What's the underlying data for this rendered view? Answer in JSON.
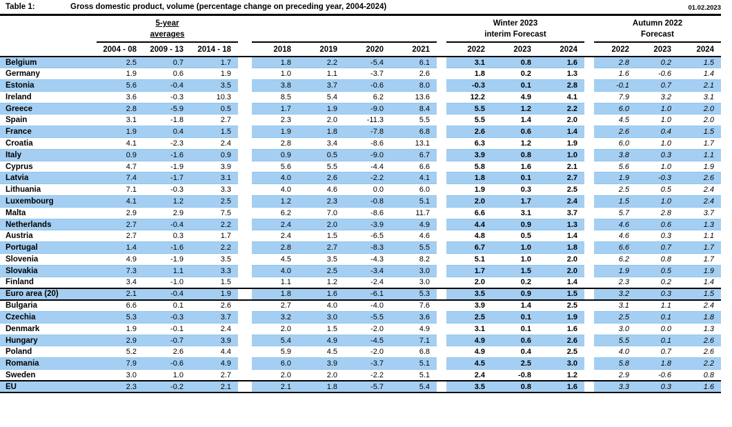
{
  "meta": {
    "table_label": "Table 1:",
    "title": "Gross domestic product, volume (percentage change on preceding year, 2004-2024)",
    "date": "01.02.2023"
  },
  "colors": {
    "row_highlight_blue": "#a5cff2",
    "row_gridline_blue": "#8cc5ef",
    "rule_black": "#000000",
    "background": "#ffffff"
  },
  "header": {
    "groups": {
      "avg_line1": "5-year",
      "avg_line2": "averages",
      "winter_line1": "Winter 2023",
      "winter_line2": "interim Forecast",
      "autumn_line1": "Autumn 2022",
      "autumn_line2": "Forecast"
    },
    "columns": {
      "avg": [
        "2004 - 08",
        "2009 - 13",
        "2014 - 18"
      ],
      "years": [
        "2018",
        "2019",
        "2020",
        "2021"
      ],
      "winter": [
        "2022",
        "2023",
        "2024"
      ],
      "autumn": [
        "2022",
        "2023",
        "2024"
      ]
    }
  },
  "rows": [
    {
      "country": "Belgium",
      "blue": true,
      "emphasis": false,
      "avg": [
        "2.5",
        "0.7",
        "1.7"
      ],
      "years": [
        "1.8",
        "2.2",
        "-5.4",
        "6.1"
      ],
      "winter": [
        "3.1",
        "0.8",
        "1.6"
      ],
      "autumn": [
        "2.8",
        "0.2",
        "1.5"
      ]
    },
    {
      "country": "Germany",
      "blue": false,
      "emphasis": false,
      "avg": [
        "1.9",
        "0.6",
        "1.9"
      ],
      "years": [
        "1.0",
        "1.1",
        "-3.7",
        "2.6"
      ],
      "winter": [
        "1.8",
        "0.2",
        "1.3"
      ],
      "autumn": [
        "1.6",
        "-0.6",
        "1.4"
      ]
    },
    {
      "country": "Estonia",
      "blue": true,
      "emphasis": false,
      "avg": [
        "5.6",
        "-0.4",
        "3.5"
      ],
      "years": [
        "3.8",
        "3.7",
        "-0.6",
        "8.0"
      ],
      "winter": [
        "-0.3",
        "0.1",
        "2.8"
      ],
      "autumn": [
        "-0.1",
        "0.7",
        "2.1"
      ]
    },
    {
      "country": "Ireland",
      "blue": false,
      "emphasis": false,
      "avg": [
        "3.6",
        "-0.3",
        "10.3"
      ],
      "years": [
        "8.5",
        "5.4",
        "6.2",
        "13.6"
      ],
      "winter": [
        "12.2",
        "4.9",
        "4.1"
      ],
      "autumn": [
        "7.9",
        "3.2",
        "3.1"
      ]
    },
    {
      "country": "Greece",
      "blue": true,
      "emphasis": false,
      "avg": [
        "2.8",
        "-5.9",
        "0.5"
      ],
      "years": [
        "1.7",
        "1.9",
        "-9.0",
        "8.4"
      ],
      "winter": [
        "5.5",
        "1.2",
        "2.2"
      ],
      "autumn": [
        "6.0",
        "1.0",
        "2.0"
      ]
    },
    {
      "country": "Spain",
      "blue": false,
      "emphasis": false,
      "avg": [
        "3.1",
        "-1.8",
        "2.7"
      ],
      "years": [
        "2.3",
        "2.0",
        "-11.3",
        "5.5"
      ],
      "winter": [
        "5.5",
        "1.4",
        "2.0"
      ],
      "autumn": [
        "4.5",
        "1.0",
        "2.0"
      ]
    },
    {
      "country": "France",
      "blue": true,
      "emphasis": false,
      "avg": [
        "1.9",
        "0.4",
        "1.5"
      ],
      "years": [
        "1.9",
        "1.8",
        "-7.8",
        "6.8"
      ],
      "winter": [
        "2.6",
        "0.6",
        "1.4"
      ],
      "autumn": [
        "2.6",
        "0.4",
        "1.5"
      ]
    },
    {
      "country": "Croatia",
      "blue": false,
      "emphasis": false,
      "avg": [
        "4.1",
        "-2.3",
        "2.4"
      ],
      "years": [
        "2.8",
        "3.4",
        "-8.6",
        "13.1"
      ],
      "winter": [
        "6.3",
        "1.2",
        "1.9"
      ],
      "autumn": [
        "6.0",
        "1.0",
        "1.7"
      ]
    },
    {
      "country": "Italy",
      "blue": true,
      "emphasis": false,
      "avg": [
        "0.9",
        "-1.6",
        "0.9"
      ],
      "years": [
        "0.9",
        "0.5",
        "-9.0",
        "6.7"
      ],
      "winter": [
        "3.9",
        "0.8",
        "1.0"
      ],
      "autumn": [
        "3.8",
        "0.3",
        "1.1"
      ]
    },
    {
      "country": "Cyprus",
      "blue": false,
      "emphasis": false,
      "avg": [
        "4.7",
        "-1.9",
        "3.9"
      ],
      "years": [
        "5.6",
        "5.5",
        "-4.4",
        "6.6"
      ],
      "winter": [
        "5.8",
        "1.6",
        "2.1"
      ],
      "autumn": [
        "5.6",
        "1.0",
        "1.9"
      ]
    },
    {
      "country": "Latvia",
      "blue": true,
      "emphasis": false,
      "avg": [
        "7.4",
        "-1.7",
        "3.1"
      ],
      "years": [
        "4.0",
        "2.6",
        "-2.2",
        "4.1"
      ],
      "winter": [
        "1.8",
        "0.1",
        "2.7"
      ],
      "autumn": [
        "1.9",
        "-0.3",
        "2.6"
      ]
    },
    {
      "country": "Lithuania",
      "blue": false,
      "emphasis": false,
      "avg": [
        "7.1",
        "-0.3",
        "3.3"
      ],
      "years": [
        "4.0",
        "4.6",
        "0.0",
        "6.0"
      ],
      "winter": [
        "1.9",
        "0.3",
        "2.5"
      ],
      "autumn": [
        "2.5",
        "0.5",
        "2.4"
      ]
    },
    {
      "country": "Luxembourg",
      "blue": true,
      "emphasis": false,
      "avg": [
        "4.1",
        "1.2",
        "2.5"
      ],
      "years": [
        "1.2",
        "2.3",
        "-0.8",
        "5.1"
      ],
      "winter": [
        "2.0",
        "1.7",
        "2.4"
      ],
      "autumn": [
        "1.5",
        "1.0",
        "2.4"
      ]
    },
    {
      "country": "Malta",
      "blue": false,
      "emphasis": false,
      "avg": [
        "2.9",
        "2.9",
        "7.5"
      ],
      "years": [
        "6.2",
        "7.0",
        "-8.6",
        "11.7"
      ],
      "winter": [
        "6.6",
        "3.1",
        "3.7"
      ],
      "autumn": [
        "5.7",
        "2.8",
        "3.7"
      ]
    },
    {
      "country": "Netherlands",
      "blue": true,
      "emphasis": false,
      "avg": [
        "2.7",
        "-0.4",
        "2.2"
      ],
      "years": [
        "2.4",
        "2.0",
        "-3.9",
        "4.9"
      ],
      "winter": [
        "4.4",
        "0.9",
        "1.3"
      ],
      "autumn": [
        "4.6",
        "0.6",
        "1.3"
      ]
    },
    {
      "country": "Austria",
      "blue": false,
      "emphasis": false,
      "avg": [
        "2.7",
        "0.3",
        "1.7"
      ],
      "years": [
        "2.4",
        "1.5",
        "-6.5",
        "4.6"
      ],
      "winter": [
        "4.8",
        "0.5",
        "1.4"
      ],
      "autumn": [
        "4.6",
        "0.3",
        "1.1"
      ]
    },
    {
      "country": "Portugal",
      "blue": true,
      "emphasis": false,
      "avg": [
        "1.4",
        "-1.6",
        "2.2"
      ],
      "years": [
        "2.8",
        "2.7",
        "-8.3",
        "5.5"
      ],
      "winter": [
        "6.7",
        "1.0",
        "1.8"
      ],
      "autumn": [
        "6.6",
        "0.7",
        "1.7"
      ]
    },
    {
      "country": "Slovenia",
      "blue": false,
      "emphasis": false,
      "avg": [
        "4.9",
        "-1.9",
        "3.5"
      ],
      "years": [
        "4.5",
        "3.5",
        "-4.3",
        "8.2"
      ],
      "winter": [
        "5.1",
        "1.0",
        "2.0"
      ],
      "autumn": [
        "6.2",
        "0.8",
        "1.7"
      ]
    },
    {
      "country": "Slovakia",
      "blue": true,
      "emphasis": false,
      "avg": [
        "7.3",
        "1.1",
        "3.3"
      ],
      "years": [
        "4.0",
        "2.5",
        "-3.4",
        "3.0"
      ],
      "winter": [
        "1.7",
        "1.5",
        "2.0"
      ],
      "autumn": [
        "1.9",
        "0.5",
        "1.9"
      ]
    },
    {
      "country": "Finland",
      "blue": false,
      "emphasis": false,
      "avg": [
        "3.4",
        "-1.0",
        "1.5"
      ],
      "years": [
        "1.1",
        "1.2",
        "-2.4",
        "3.0"
      ],
      "winter": [
        "2.0",
        "0.2",
        "1.4"
      ],
      "autumn": [
        "2.3",
        "0.2",
        "1.4"
      ]
    },
    {
      "country": "Euro area (20)",
      "blue": true,
      "emphasis": true,
      "avg": [
        "2.1",
        "-0.4",
        "1.9"
      ],
      "years": [
        "1.8",
        "1.6",
        "-6.1",
        "5.3"
      ],
      "winter": [
        "3.5",
        "0.9",
        "1.5"
      ],
      "autumn": [
        "3.2",
        "0.3",
        "1.5"
      ]
    },
    {
      "country": "Bulgaria",
      "blue": false,
      "emphasis": false,
      "avg": [
        "6.6",
        "0.1",
        "2.6"
      ],
      "years": [
        "2.7",
        "4.0",
        "-4.0",
        "7.6"
      ],
      "winter": [
        "3.9",
        "1.4",
        "2.5"
      ],
      "autumn": [
        "3.1",
        "1.1",
        "2.4"
      ]
    },
    {
      "country": "Czechia",
      "blue": true,
      "emphasis": false,
      "avg": [
        "5.3",
        "-0.3",
        "3.7"
      ],
      "years": [
        "3.2",
        "3.0",
        "-5.5",
        "3.6"
      ],
      "winter": [
        "2.5",
        "0.1",
        "1.9"
      ],
      "autumn": [
        "2.5",
        "0.1",
        "1.8"
      ]
    },
    {
      "country": "Denmark",
      "blue": false,
      "emphasis": false,
      "avg": [
        "1.9",
        "-0.1",
        "2.4"
      ],
      "years": [
        "2.0",
        "1.5",
        "-2.0",
        "4.9"
      ],
      "winter": [
        "3.1",
        "0.1",
        "1.6"
      ],
      "autumn": [
        "3.0",
        "0.0",
        "1.3"
      ]
    },
    {
      "country": "Hungary",
      "blue": true,
      "emphasis": false,
      "avg": [
        "2.9",
        "-0.7",
        "3.9"
      ],
      "years": [
        "5.4",
        "4.9",
        "-4.5",
        "7.1"
      ],
      "winter": [
        "4.9",
        "0.6",
        "2.6"
      ],
      "autumn": [
        "5.5",
        "0.1",
        "2.6"
      ]
    },
    {
      "country": "Poland",
      "blue": false,
      "emphasis": false,
      "avg": [
        "5.2",
        "2.6",
        "4.4"
      ],
      "years": [
        "5.9",
        "4.5",
        "-2.0",
        "6.8"
      ],
      "winter": [
        "4.9",
        "0.4",
        "2.5"
      ],
      "autumn": [
        "4.0",
        "0.7",
        "2.6"
      ]
    },
    {
      "country": "Romania",
      "blue": true,
      "emphasis": false,
      "avg": [
        "7.9",
        "-0.6",
        "4.9"
      ],
      "years": [
        "6.0",
        "3.9",
        "-3.7",
        "5.1"
      ],
      "winter": [
        "4.5",
        "2.5",
        "3.0"
      ],
      "autumn": [
        "5.8",
        "1.8",
        "2.2"
      ]
    },
    {
      "country": "Sweden",
      "blue": false,
      "emphasis": false,
      "avg": [
        "3.0",
        "1.0",
        "2.7"
      ],
      "years": [
        "2.0",
        "2.0",
        "-2.2",
        "5.1"
      ],
      "winter": [
        "2.4",
        "-0.8",
        "1.2"
      ],
      "autumn": [
        "2.9",
        "-0.6",
        "0.8"
      ]
    },
    {
      "country": "EU",
      "blue": true,
      "emphasis": true,
      "avg": [
        "2.3",
        "-0.2",
        "2.1"
      ],
      "years": [
        "2.1",
        "1.8",
        "-5.7",
        "5.4"
      ],
      "winter": [
        "3.5",
        "0.8",
        "1.6"
      ],
      "autumn": [
        "3.3",
        "0.3",
        "1.6"
      ]
    }
  ]
}
